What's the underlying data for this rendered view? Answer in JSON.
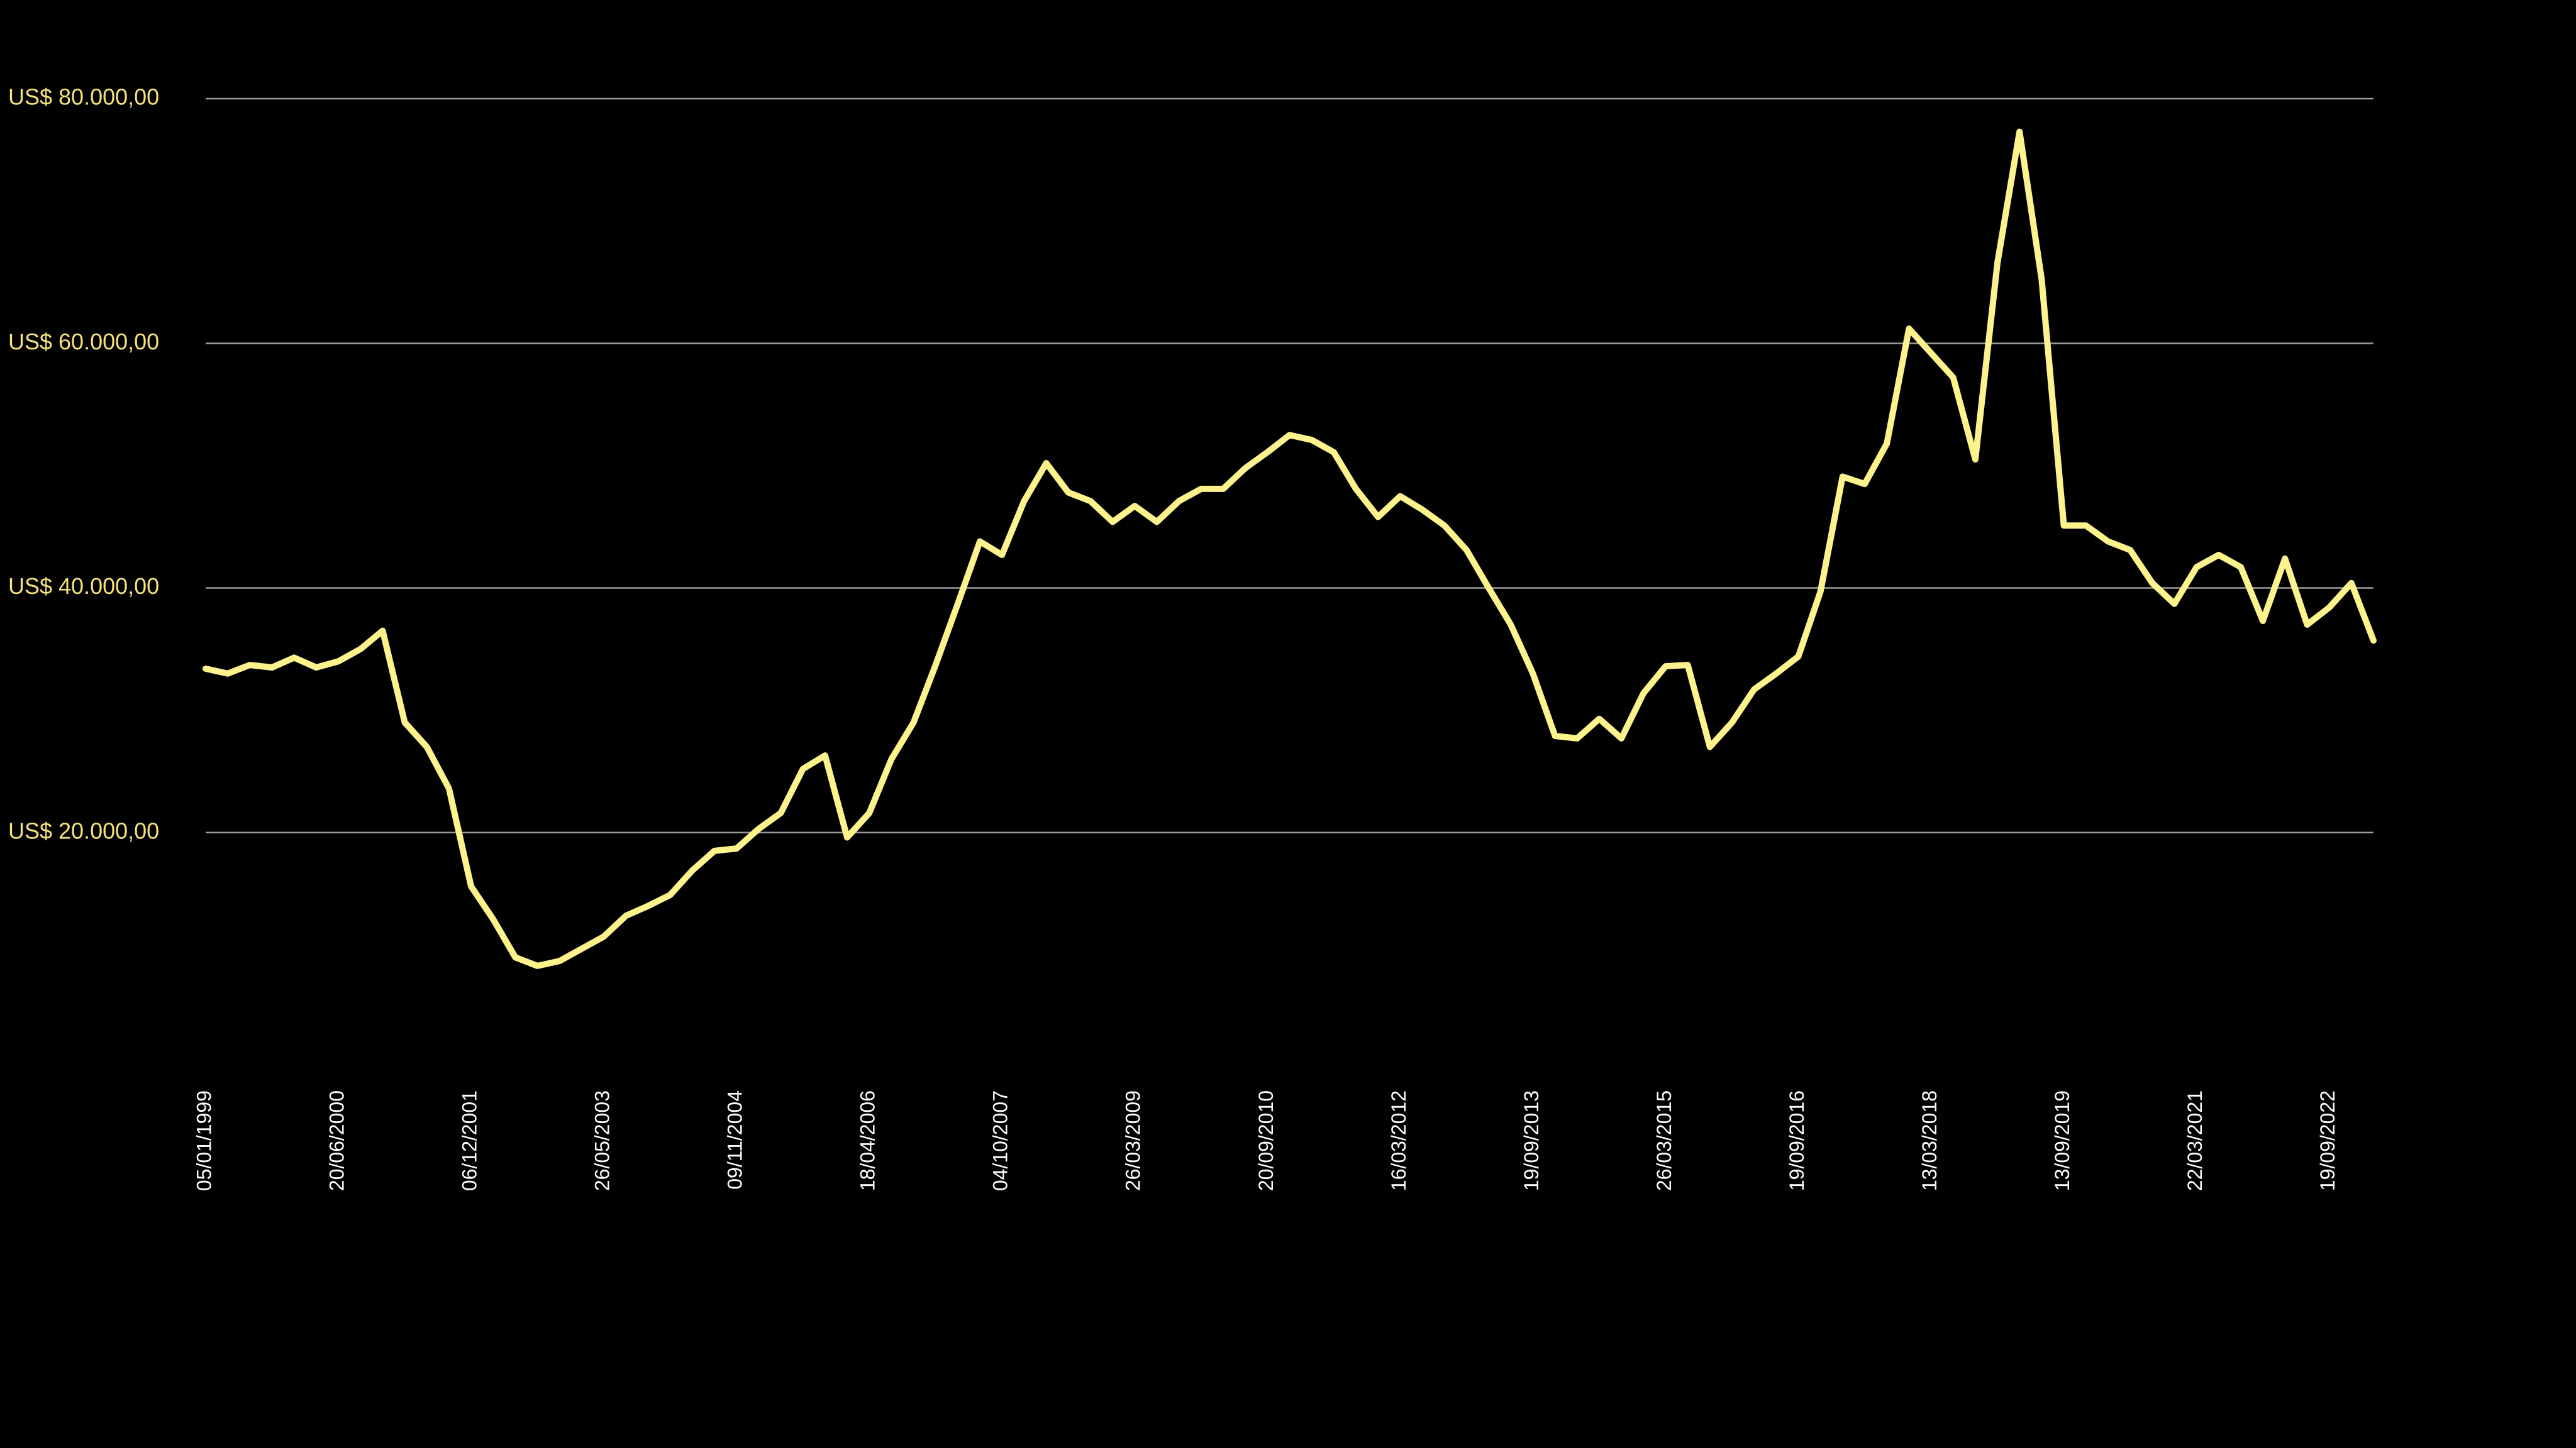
{
  "chart_data": {
    "type": "line",
    "categories": [
      "05/01/1999",
      null,
      null,
      null,
      null,
      null,
      "20/06/2000",
      null,
      null,
      null,
      null,
      null,
      "06/12/2001",
      null,
      null,
      null,
      null,
      null,
      "26/05/2003",
      null,
      null,
      null,
      null,
      null,
      "09/11/2004",
      null,
      null,
      null,
      null,
      null,
      "18/04/2006",
      null,
      null,
      null,
      null,
      null,
      "04/10/2007",
      null,
      null,
      null,
      null,
      null,
      "26/03/2009",
      null,
      null,
      null,
      null,
      null,
      "20/09/2010",
      null,
      null,
      null,
      null,
      null,
      "16/03/2012",
      null,
      null,
      null,
      null,
      null,
      "19/09/2013",
      null,
      null,
      null,
      null,
      null,
      "26/03/2015",
      null,
      null,
      null,
      null,
      null,
      "19/09/2016",
      null,
      null,
      null,
      null,
      null,
      "13/03/2018",
      null,
      null,
      null,
      null,
      null,
      "13/09/2019",
      null,
      null,
      null,
      null,
      null,
      "22/03/2021",
      null,
      null,
      null,
      null,
      null,
      "19/09/2022",
      null,
      null
    ],
    "values": [
      33400,
      33000,
      33700,
      33500,
      34300,
      33500,
      34000,
      35000,
      36500,
      29000,
      27000,
      23600,
      15600,
      12900,
      9800,
      9100,
      9500,
      10500,
      11500,
      13200,
      14000,
      14900,
      16900,
      18500,
      18700,
      20300,
      21600,
      25200,
      26300,
      19600,
      21600,
      26000,
      29000,
      33700,
      38700,
      43800,
      42700,
      47100,
      50200,
      47800,
      47100,
      45400,
      46700,
      45400,
      47100,
      48100,
      48100,
      49800,
      51100,
      52500,
      52100,
      51100,
      48100,
      45800,
      47500,
      46400,
      45100,
      43100,
      40000,
      37000,
      33000,
      27900,
      27700,
      29300,
      27700,
      31400,
      33600,
      33700,
      27000,
      29000,
      31700,
      33000,
      34400,
      39700,
      49100,
      48500,
      51800,
      61200,
      59200,
      57200,
      50500,
      66600,
      77300,
      65200,
      45100,
      45100,
      43800,
      43100,
      40400,
      38700,
      41700,
      42700,
      41700,
      37300,
      42400,
      37000,
      38400,
      40400,
      35700
    ],
    "color": "#fdf28c",
    "ylim": [
      0,
      80000
    ],
    "yticks": [
      {
        "value": 20000,
        "label": "US$ 20.000,00"
      },
      {
        "value": 40000,
        "label": "US$ 40.000,00"
      },
      {
        "value": 60000,
        "label": "US$ 60.000,00"
      },
      {
        "value": 80000,
        "label": "US$ 80.000,00"
      }
    ],
    "grid": true
  }
}
